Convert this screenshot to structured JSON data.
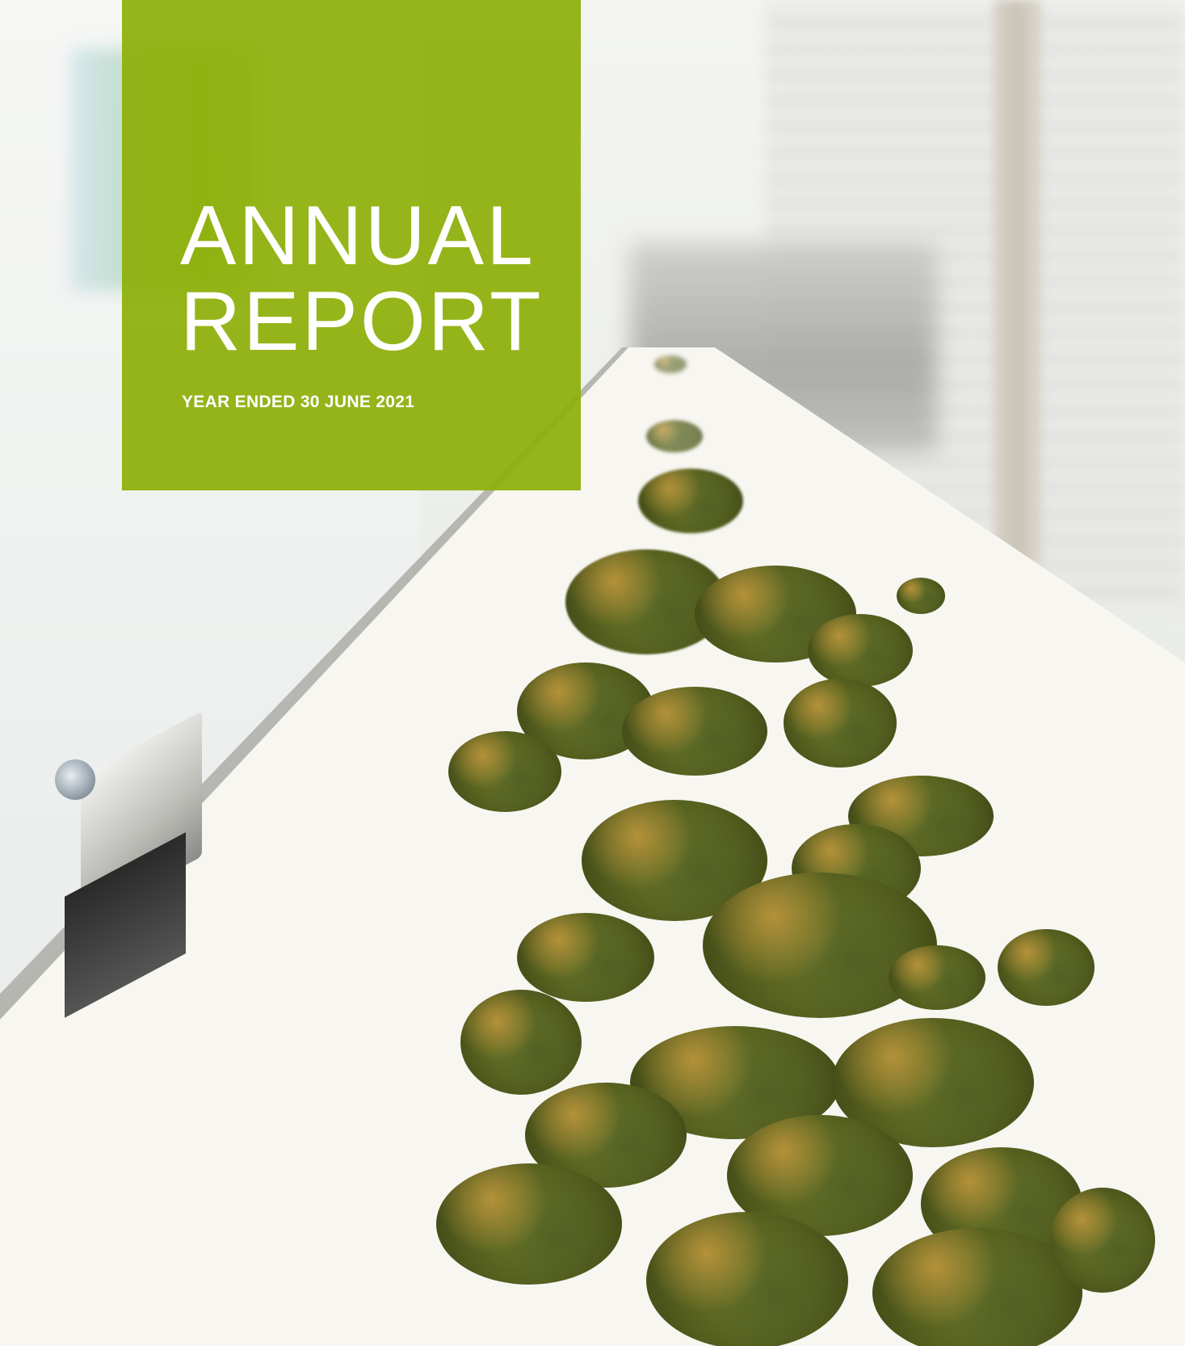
{
  "cover": {
    "title_line_1": "ANNUAL",
    "title_line_2": "REPORT",
    "subtitle": "YEAR ENDED 30 JUNE 2021",
    "accent_color": "#8daf08"
  },
  "photo": {
    "description_icon": "photo-background"
  }
}
